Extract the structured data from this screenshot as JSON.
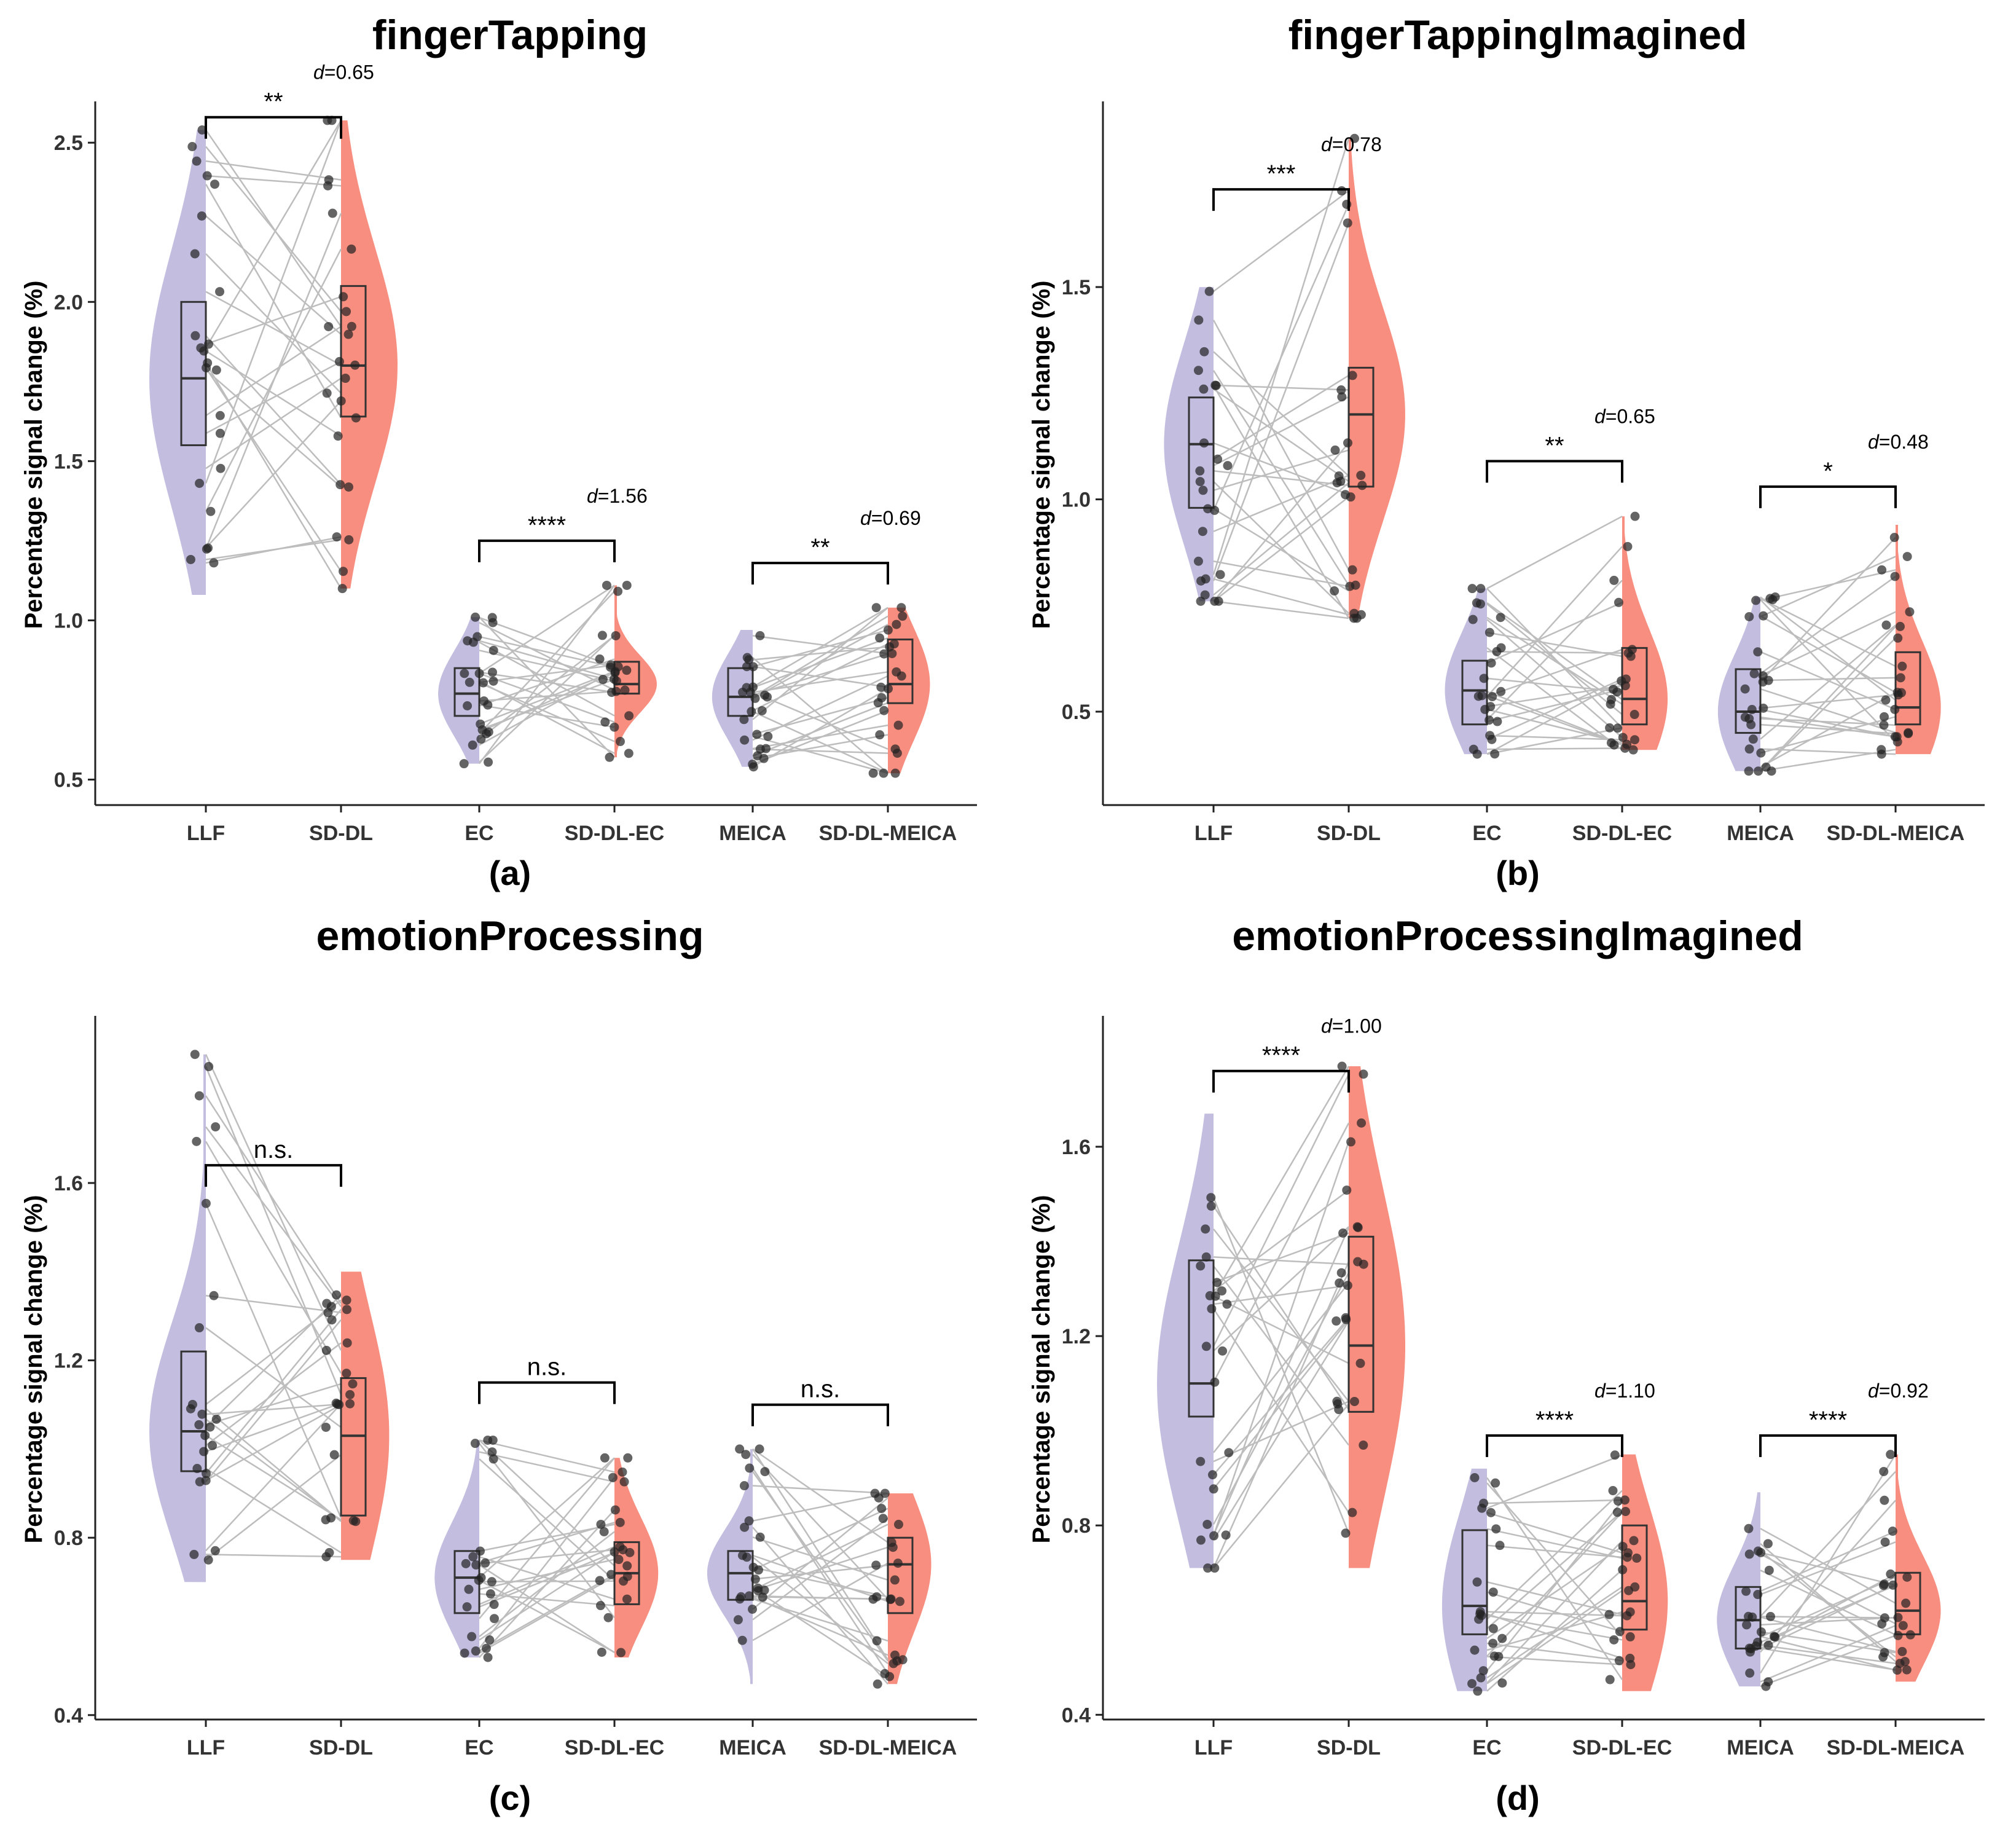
{
  "colors": {
    "left": "#b8b3db",
    "right": "#f77a68",
    "point": "#222222",
    "line": "#bdbdbd"
  },
  "chart_data": [
    {
      "type": "violin",
      "title": "fingerTapping",
      "label": "(a)",
      "ylabel": "Percentage signal change (%)",
      "categories": [
        "LLF",
        "SD-DL",
        "EC",
        "SD-DL-EC",
        "MEICA",
        "SD-DL-MEICA"
      ],
      "ylim": [
        0.42,
        2.62
      ],
      "yticks": [
        0.5,
        1.0,
        1.5,
        2.0,
        2.5
      ],
      "ytick_labels": [
        "0.5",
        "1.0",
        "1.5",
        "2.0",
        "2.5"
      ],
      "groups": [
        {
          "min": 1.08,
          "max": 2.54,
          "q1": 1.55,
          "median": 1.76,
          "q3": 2.0
        },
        {
          "min": 1.1,
          "max": 2.57,
          "q1": 1.64,
          "median": 1.8,
          "q3": 2.05
        },
        {
          "min": 0.55,
          "max": 1.01,
          "q1": 0.7,
          "median": 0.77,
          "q3": 0.85
        },
        {
          "min": 0.57,
          "max": 1.11,
          "q1": 0.77,
          "median": 0.8,
          "q3": 0.87
        },
        {
          "min": 0.54,
          "max": 0.97,
          "q1": 0.7,
          "median": 0.76,
          "q3": 0.85
        },
        {
          "min": 0.52,
          "max": 1.04,
          "q1": 0.74,
          "median": 0.8,
          "q3": 0.94
        }
      ],
      "comparisons": [
        {
          "pair": [
            0,
            1
          ],
          "sig": "**",
          "y": 2.58,
          "d": "=0.65"
        },
        {
          "pair": [
            2,
            3
          ],
          "sig": "****",
          "y": 1.25,
          "d": "=1.56"
        },
        {
          "pair": [
            4,
            5
          ],
          "sig": "**",
          "y": 1.18,
          "d": "=0.69"
        }
      ]
    },
    {
      "type": "violin",
      "title": "fingerTappingImagined",
      "label": "(b)",
      "ylabel": "Percentage signal change (%)",
      "categories": [
        "LLF",
        "SD-DL",
        "EC",
        "SD-DL-EC",
        "MEICA",
        "SD-DL-MEICA"
      ],
      "ylim": [
        0.28,
        1.93
      ],
      "yticks": [
        0.5,
        1.0,
        1.5
      ],
      "ytick_labels": [
        "0.5",
        "1.0",
        "1.5"
      ],
      "groups": [
        {
          "min": 0.76,
          "max": 1.5,
          "q1": 0.98,
          "median": 1.13,
          "q3": 1.24
        },
        {
          "min": 0.72,
          "max": 1.85,
          "q1": 1.03,
          "median": 1.2,
          "q3": 1.31
        },
        {
          "min": 0.4,
          "max": 0.79,
          "q1": 0.47,
          "median": 0.55,
          "q3": 0.62
        },
        {
          "min": 0.41,
          "max": 0.96,
          "q1": 0.47,
          "median": 0.53,
          "q3": 0.65
        },
        {
          "min": 0.36,
          "max": 0.77,
          "q1": 0.45,
          "median": 0.5,
          "q3": 0.6
        },
        {
          "min": 0.4,
          "max": 0.94,
          "q1": 0.47,
          "median": 0.51,
          "q3": 0.64
        }
      ],
      "comparisons": [
        {
          "pair": [
            0,
            1
          ],
          "sig": "***",
          "y": 1.73,
          "d": "=0.78"
        },
        {
          "pair": [
            2,
            3
          ],
          "sig": "**",
          "y": 1.09,
          "d": "=0.65"
        },
        {
          "pair": [
            4,
            5
          ],
          "sig": "*",
          "y": 1.03,
          "d": "=0.48"
        }
      ]
    },
    {
      "type": "violin",
      "title": "emotionProcessing",
      "label": "(c)",
      "ylabel": "Percentage signal change (%)",
      "categories": [
        "LLF",
        "SD-DL",
        "EC",
        "SD-DL-EC",
        "MEICA",
        "SD-DL-MEICA"
      ],
      "ylim": [
        0.39,
        1.97
      ],
      "yticks": [
        0.4,
        0.8,
        1.2,
        1.6
      ],
      "ytick_labels": [
        "0.4",
        "0.8",
        "1.2",
        "1.6"
      ],
      "groups": [
        {
          "min": 0.7,
          "max": 1.89,
          "q1": 0.95,
          "median": 1.04,
          "q3": 1.22
        },
        {
          "min": 0.75,
          "max": 1.4,
          "q1": 0.85,
          "median": 1.03,
          "q3": 1.16
        },
        {
          "min": 0.53,
          "max": 1.02,
          "q1": 0.63,
          "median": 0.71,
          "q3": 0.77
        },
        {
          "min": 0.53,
          "max": 0.98,
          "q1": 0.65,
          "median": 0.72,
          "q3": 0.79
        },
        {
          "min": 0.47,
          "max": 1.0,
          "q1": 0.66,
          "median": 0.72,
          "q3": 0.77
        },
        {
          "min": 0.47,
          "max": 0.9,
          "q1": 0.63,
          "median": 0.74,
          "q3": 0.8
        }
      ],
      "comparisons": [
        {
          "pair": [
            0,
            1
          ],
          "sig": "n.s.",
          "y": 1.64,
          "d": ""
        },
        {
          "pair": [
            2,
            3
          ],
          "sig": "n.s.",
          "y": 1.15,
          "d": ""
        },
        {
          "pair": [
            4,
            5
          ],
          "sig": "n.s.",
          "y": 1.1,
          "d": ""
        }
      ]
    },
    {
      "type": "violin",
      "title": "emotionProcessingImagined",
      "label": "(d)",
      "ylabel": "Percentage signal change (%)",
      "categories": [
        "LLF",
        "SD-DL",
        "EC",
        "SD-DL-EC",
        "MEICA",
        "SD-DL-MEICA"
      ],
      "ylim": [
        0.39,
        1.87
      ],
      "yticks": [
        0.4,
        0.8,
        1.2,
        1.6
      ],
      "ytick_labels": [
        "0.4",
        "0.8",
        "1.2",
        "1.6"
      ],
      "groups": [
        {
          "min": 0.71,
          "max": 1.67,
          "q1": 1.03,
          "median": 1.1,
          "q3": 1.36
        },
        {
          "min": 0.71,
          "max": 1.77,
          "q1": 1.04,
          "median": 1.18,
          "q3": 1.41
        },
        {
          "min": 0.45,
          "max": 0.92,
          "q1": 0.57,
          "median": 0.63,
          "q3": 0.79
        },
        {
          "min": 0.45,
          "max": 0.95,
          "q1": 0.58,
          "median": 0.64,
          "q3": 0.8
        },
        {
          "min": 0.46,
          "max": 0.87,
          "q1": 0.54,
          "median": 0.6,
          "q3": 0.67
        },
        {
          "min": 0.47,
          "max": 0.95,
          "q1": 0.57,
          "median": 0.62,
          "q3": 0.7
        }
      ],
      "comparisons": [
        {
          "pair": [
            0,
            1
          ],
          "sig": "****",
          "y": 1.76,
          "d": "=1.00"
        },
        {
          "pair": [
            2,
            3
          ],
          "sig": "****",
          "y": 0.99,
          "d": "=1.10"
        },
        {
          "pair": [
            4,
            5
          ],
          "sig": "****",
          "y": 0.99,
          "d": "=0.92"
        }
      ]
    }
  ],
  "effect_size_symbol": "d"
}
